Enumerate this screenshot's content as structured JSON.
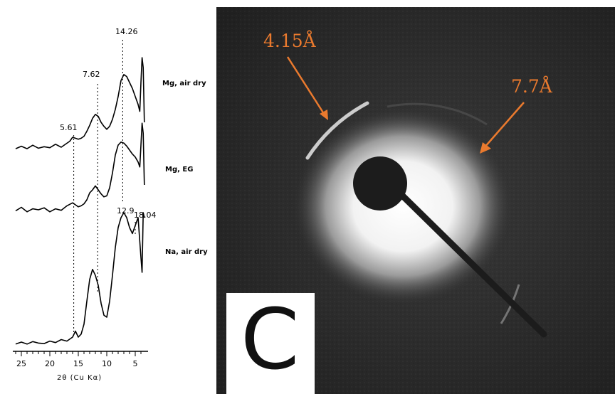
{
  "chart_data": {
    "type": "line",
    "xlabel": "2θ (Cu Kα)",
    "xlim": [
      26,
      3
    ],
    "ticks": [
      25,
      20,
      15,
      10,
      5
    ],
    "series": [
      {
        "name": "Mg, air dry",
        "x": [
          26,
          25,
          24,
          23,
          22,
          21,
          20,
          19,
          18,
          17,
          16.5,
          16,
          15.5,
          15,
          14.5,
          14,
          13.5,
          13,
          12.5,
          12,
          11.5,
          11,
          10.5,
          10,
          9.5,
          9,
          8.5,
          8,
          7.5,
          7,
          6.5,
          6,
          5.5,
          5,
          4.5,
          4.2,
          4,
          3.8,
          3.6,
          3.4
        ],
        "y": [
          0.35,
          0.6,
          0.35,
          0.7,
          0.4,
          0.55,
          0.45,
          0.8,
          0.5,
          0.9,
          1.1,
          1.5,
          1.4,
          1.3,
          1.4,
          1.6,
          2.1,
          2.7,
          3.4,
          3.8,
          3.6,
          3.0,
          2.6,
          2.3,
          2.6,
          3.3,
          4.3,
          5.6,
          7.2,
          7.8,
          7.6,
          7.0,
          6.4,
          5.6,
          4.8,
          4.1,
          7,
          9.5,
          8.5,
          3
        ]
      },
      {
        "name": "Mg, EG",
        "x": [
          26,
          25,
          24,
          23,
          22,
          21,
          20,
          19,
          18,
          17,
          16,
          15.5,
          15,
          14.5,
          14,
          13.5,
          13,
          12.5,
          12,
          11.5,
          11,
          10.5,
          10,
          9.5,
          9,
          8.5,
          8,
          7.5,
          7,
          6.5,
          6,
          5.5,
          5,
          4.5,
          4.2,
          4,
          3.8,
          3.6,
          3.4
        ],
        "y": [
          0.4,
          0.75,
          0.3,
          0.6,
          0.5,
          0.7,
          0.3,
          0.6,
          0.45,
          0.9,
          1.2,
          1.0,
          0.8,
          0.9,
          1.1,
          1.5,
          2.2,
          2.5,
          2.9,
          2.5,
          2.1,
          1.8,
          1.9,
          2.7,
          4.2,
          6.0,
          7.0,
          7.3,
          7.2,
          6.9,
          6.5,
          6.1,
          5.8,
          5.3,
          4.8,
          7,
          9.2,
          8.2,
          3
        ]
      },
      {
        "name": "Na, air dry",
        "x": [
          26,
          25,
          24,
          23,
          22,
          21,
          20,
          19,
          18,
          17,
          16,
          15.5,
          15,
          14.5,
          14,
          13.5,
          13,
          12.5,
          12,
          11.5,
          11,
          10.5,
          10,
          9.5,
          9,
          8.5,
          8,
          7.5,
          7,
          6.5,
          6,
          5.5,
          5,
          4.5,
          4,
          3.8,
          3.6,
          3.4
        ],
        "y": [
          0.3,
          0.5,
          0.3,
          0.55,
          0.4,
          0.35,
          0.6,
          0.45,
          0.75,
          0.6,
          1.0,
          1.6,
          1.0,
          1.3,
          2.3,
          4.6,
          6.8,
          7.8,
          7.2,
          6.2,
          4.4,
          3.2,
          3.0,
          4.6,
          7.2,
          10.0,
          12.0,
          13.0,
          13.5,
          13.0,
          12.0,
          11.4,
          12.2,
          13.0,
          9.0,
          7.5,
          13.5,
          13
        ]
      }
    ],
    "peak_labels": [
      "14.26",
      "7.62",
      "5.61",
      "12.9",
      "18.04"
    ]
  },
  "figure": {
    "annotations": [
      "4.15Å",
      "7.7Å"
    ],
    "plate_letter": "C"
  },
  "colors": {
    "annotation": "#ea7a2e",
    "photo_background": "#2c2c2c",
    "ink": "#000000"
  }
}
